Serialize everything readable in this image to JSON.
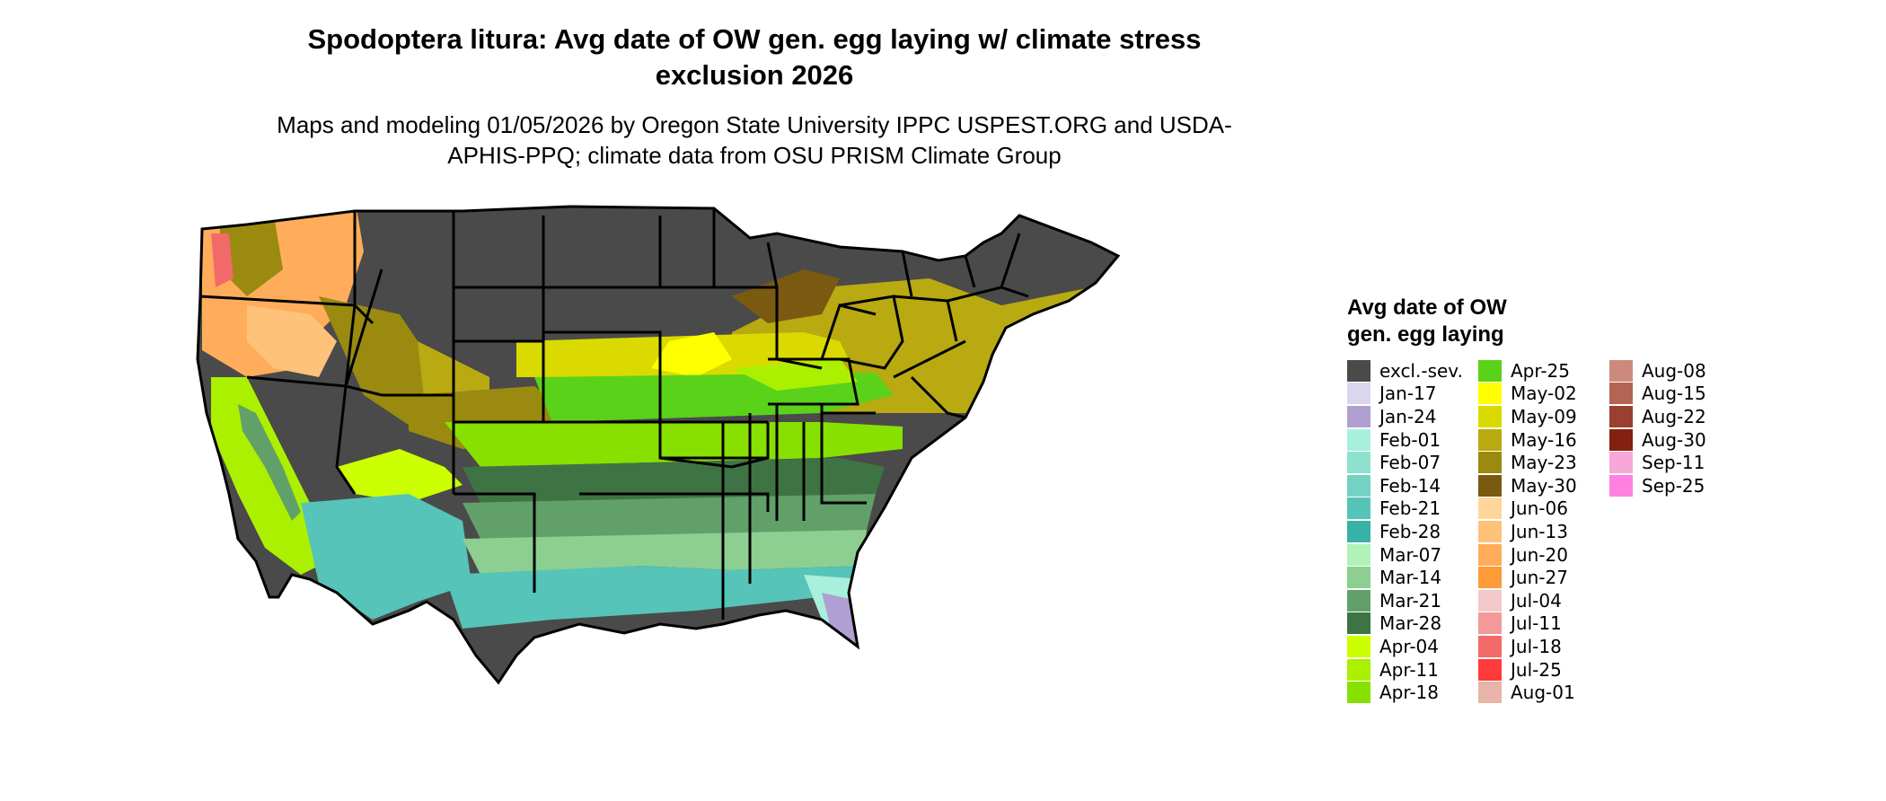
{
  "title": "Spodoptera litura: Avg date of OW gen. egg laying w/ climate stress exclusion 2026",
  "subtitle": "Maps and modeling 01/05/2026 by Oregon State University IPPC USPEST.ORG and USDA-APHIS-PPQ; climate data from OSU PRISM Climate Group",
  "legend": {
    "title_line1": "Avg date of OW",
    "title_line2": "gen. egg laying",
    "columns": [
      [
        {
          "label": "excl.-sev.",
          "color": "#4a4a4a"
        },
        {
          "label": "Jan-17",
          "color": "#dcd5ee"
        },
        {
          "label": "Jan-24",
          "color": "#b0a0d2"
        },
        {
          "label": "Feb-01",
          "color": "#a8f0dc"
        },
        {
          "label": "Feb-07",
          "color": "#8ee0cf"
        },
        {
          "label": "Feb-14",
          "color": "#74d2c4"
        },
        {
          "label": "Feb-21",
          "color": "#56c4b8"
        },
        {
          "label": "Feb-28",
          "color": "#36b2a6"
        },
        {
          "label": "Mar-07",
          "color": "#b0f2b8"
        },
        {
          "label": "Mar-14",
          "color": "#8ccf90"
        },
        {
          "label": "Mar-21",
          "color": "#62a06a"
        },
        {
          "label": "Mar-28",
          "color": "#3e7444"
        },
        {
          "label": "Apr-04",
          "color": "#ccff00"
        },
        {
          "label": "Apr-11",
          "color": "#aaf000"
        },
        {
          "label": "Apr-18",
          "color": "#88e000"
        }
      ],
      [
        {
          "label": "Apr-25",
          "color": "#5ad21a"
        },
        {
          "label": "May-02",
          "color": "#ffff00"
        },
        {
          "label": "May-09",
          "color": "#dada00"
        },
        {
          "label": "May-16",
          "color": "#b8aa10"
        },
        {
          "label": "May-23",
          "color": "#9a8a10"
        },
        {
          "label": "May-30",
          "color": "#7a5a10"
        },
        {
          "label": "Jun-06",
          "color": "#ffd69a"
        },
        {
          "label": "Jun-13",
          "color": "#ffc27a"
        },
        {
          "label": "Jun-20",
          "color": "#ffad5a"
        },
        {
          "label": "Jun-27",
          "color": "#ff9a38"
        },
        {
          "label": "Jul-04",
          "color": "#f2c8c8"
        },
        {
          "label": "Jul-11",
          "color": "#f29a9a"
        },
        {
          "label": "Jul-18",
          "color": "#f26a6a"
        },
        {
          "label": "Jul-25",
          "color": "#ff3a3a"
        },
        {
          "label": "Aug-01",
          "color": "#e8b4a8"
        }
      ],
      [
        {
          "label": "Aug-08",
          "color": "#cc8a7e"
        },
        {
          "label": "Aug-15",
          "color": "#b46454"
        },
        {
          "label": "Aug-22",
          "color": "#9a4030"
        },
        {
          "label": "Aug-30",
          "color": "#842010"
        },
        {
          "label": "Sep-11",
          "color": "#f8a8d8"
        },
        {
          "label": "Sep-25",
          "color": "#ff80e0"
        }
      ]
    ]
  }
}
